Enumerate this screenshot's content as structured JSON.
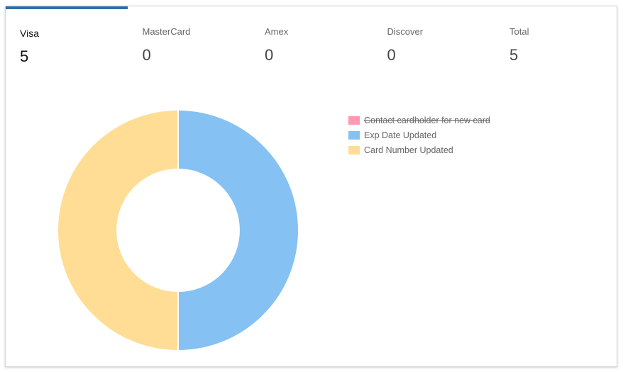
{
  "tabs": [
    {
      "label": "Visa",
      "value": "5",
      "active": true
    },
    {
      "label": "MasterCard",
      "value": "0"
    },
    {
      "label": "Amex",
      "value": "0"
    },
    {
      "label": "Discover",
      "value": "0"
    },
    {
      "label": "Total",
      "value": "5"
    }
  ],
  "colors": {
    "accent": "#2e6da4"
  },
  "chart_data": {
    "type": "doughnut",
    "legend_position": "right",
    "series": [
      {
        "name": "Contact cardholder for new card",
        "value": 0,
        "color": "#ff9aaf",
        "hidden": true
      },
      {
        "name": "Exp Date Updated",
        "value": 50,
        "color": "#85c1f2"
      },
      {
        "name": "Card Number Updated",
        "value": 50,
        "color": "#ffdd94"
      }
    ]
  }
}
